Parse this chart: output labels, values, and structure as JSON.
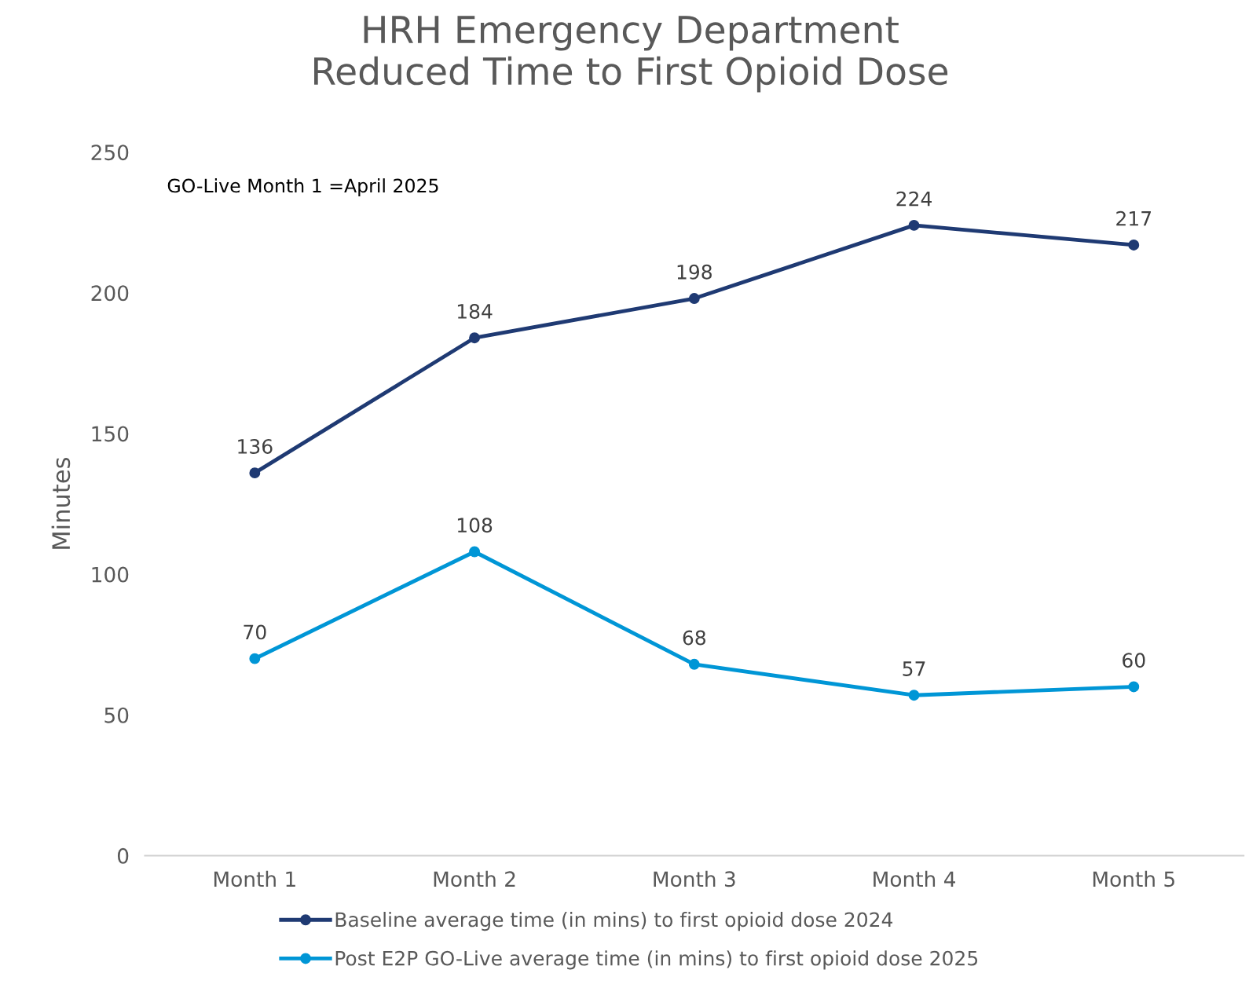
{
  "chart_data": {
    "type": "line",
    "title": "HRH Emergency Department\nReduced Time to First Opioid Dose",
    "ylabel": "Minutes",
    "categories": [
      "Month 1",
      "Month 2",
      "Month 3",
      "Month 4",
      "Month 5"
    ],
    "series": [
      {
        "name": "Baseline average time (in mins) to first opioid dose 2024",
        "color": "#1f3a73",
        "values": [
          136,
          184,
          198,
          224,
          217
        ]
      },
      {
        "name": "Post E2P GO-Live average time (in mins) to first opioid dose 2025",
        "color": "#0096d6",
        "values": [
          70,
          108,
          68,
          57,
          60
        ]
      }
    ],
    "ylim": [
      0,
      250
    ],
    "yticks": [
      0,
      50,
      100,
      150,
      200,
      250
    ],
    "grid": false,
    "legend": "bottom",
    "marker": "circle",
    "line_style": "solid",
    "data_labels": true,
    "annotations": [
      "GO-Live Month 1 =April 2025"
    ]
  }
}
